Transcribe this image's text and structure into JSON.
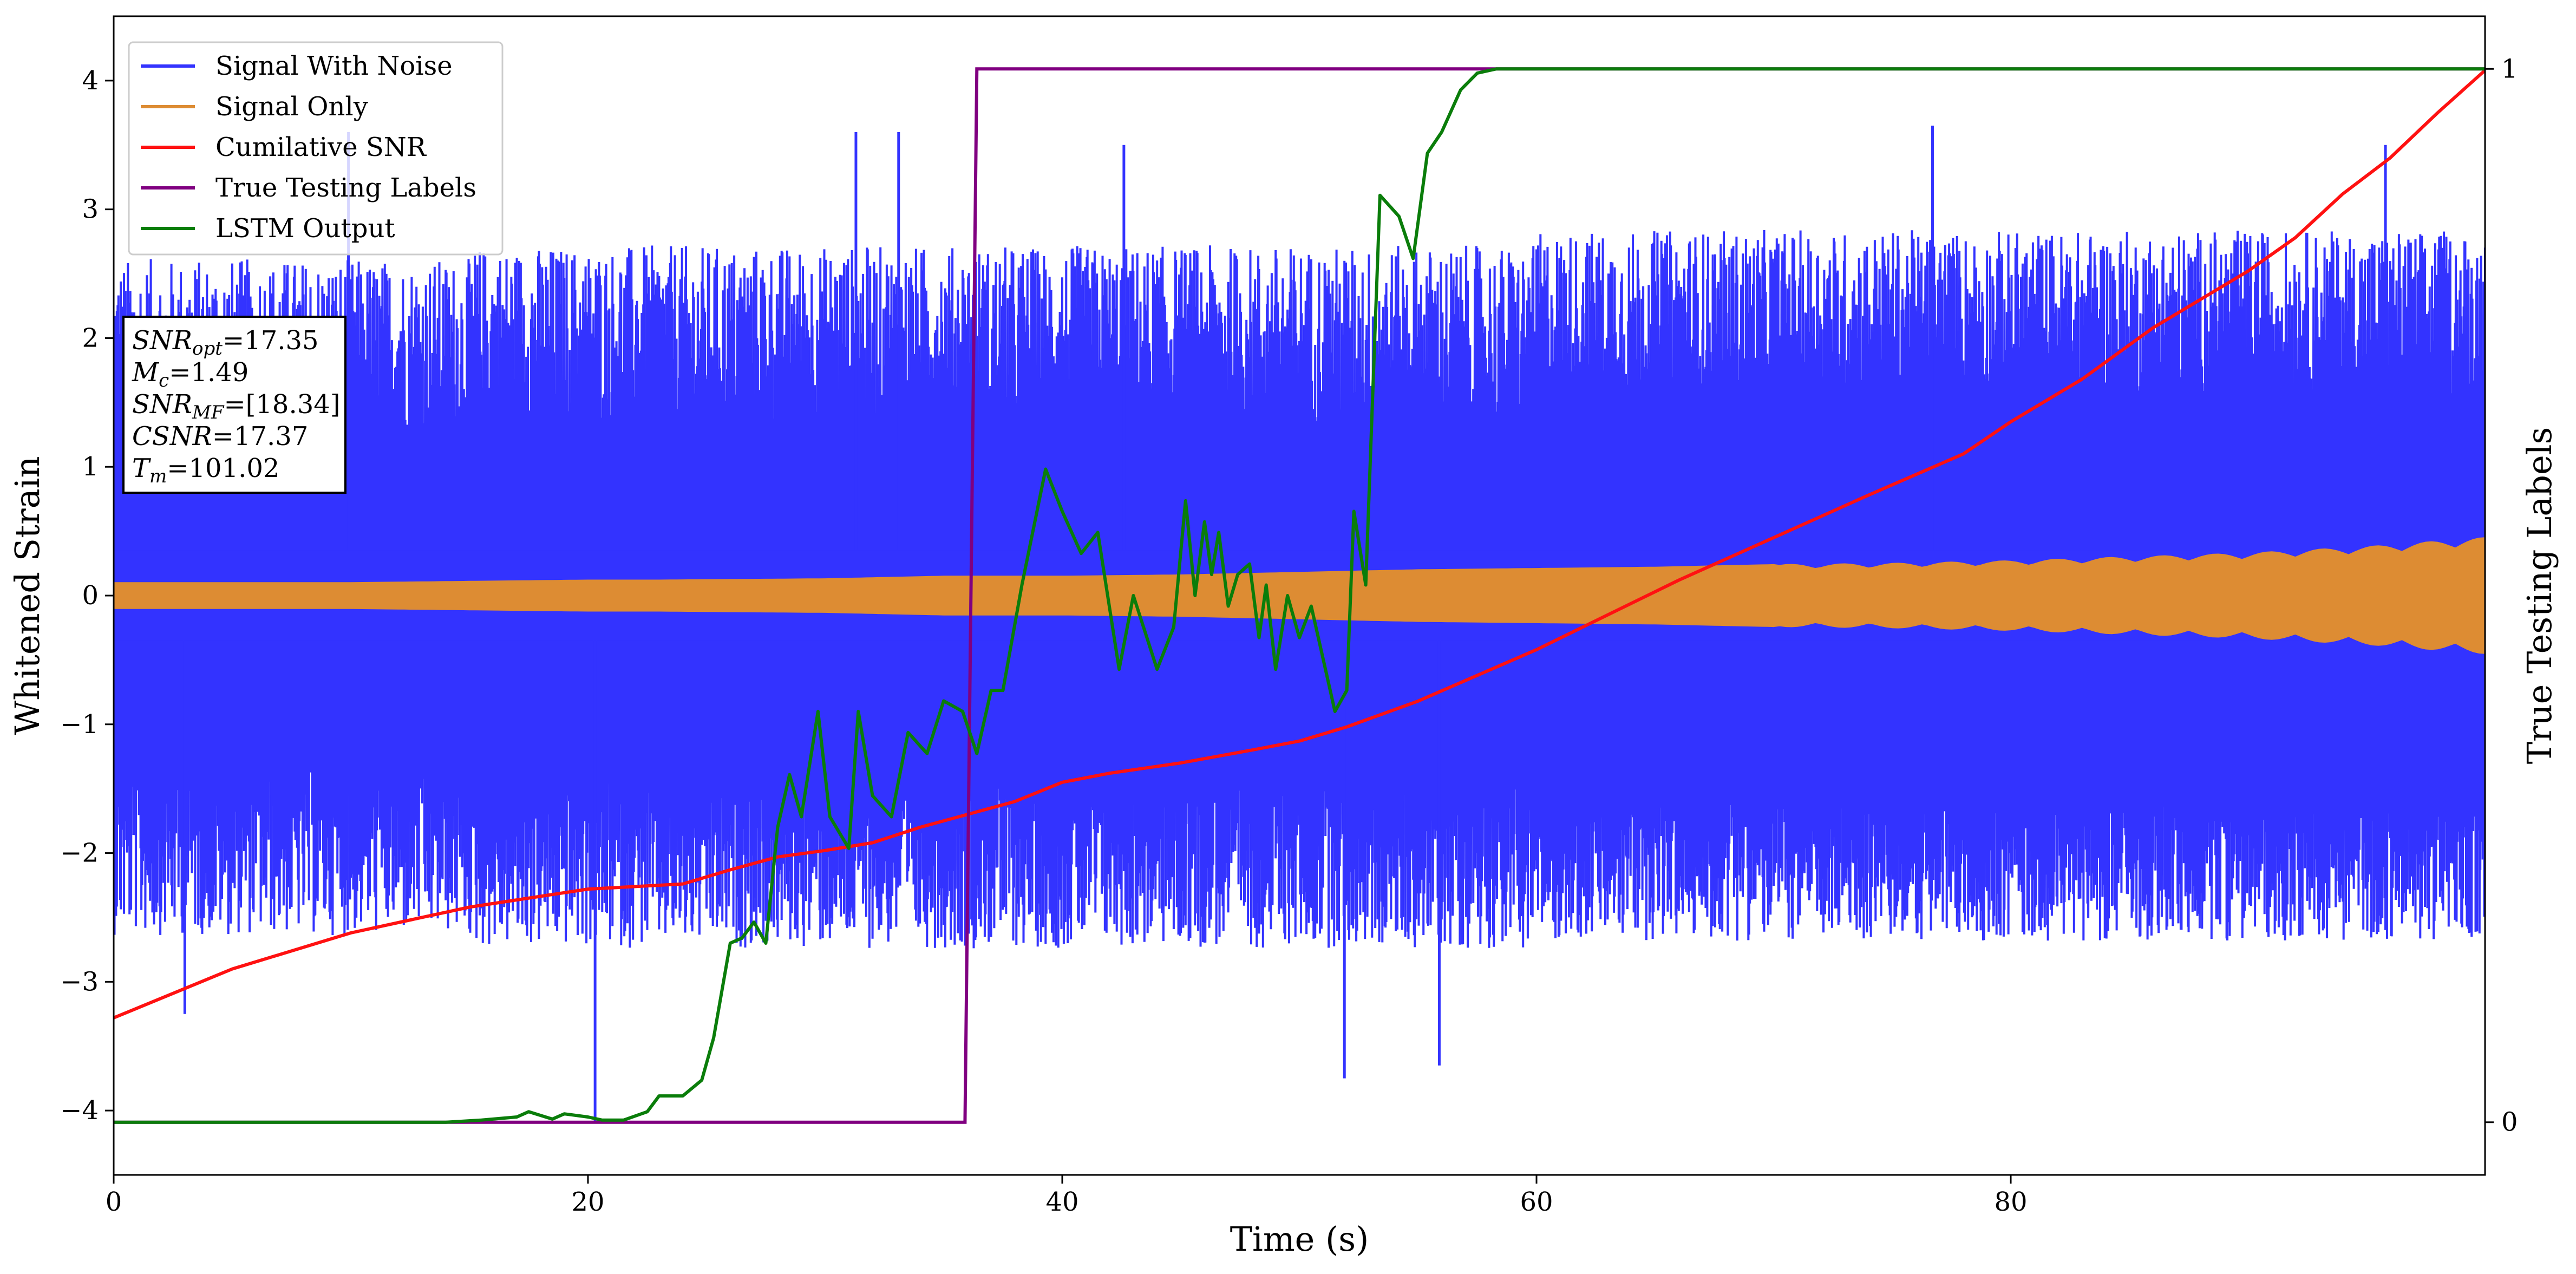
{
  "chart_data": {
    "type": "line",
    "title": "",
    "xlabel": "Time (s)",
    "ylabel": "Whitened Strain",
    "y2label": "True Testing Labels",
    "xlim": [
      0,
      100
    ],
    "ylim": [
      -4.5,
      4.5
    ],
    "y2lim": [
      -0.05,
      1.05
    ],
    "x_ticks": [
      0,
      20,
      40,
      60,
      80
    ],
    "y_ticks": [
      -4,
      -3,
      -2,
      -1,
      0,
      1,
      2,
      3,
      4
    ],
    "y2_ticks": [
      0,
      1
    ],
    "grid": false,
    "legend_position": "top-left",
    "colors": {
      "noise": "#3333ff",
      "signal": "#dd8c33",
      "csnr": "#ff1111",
      "labels": "#800080",
      "lstm": "#0a7d0a"
    },
    "series": [
      {
        "name": "Signal With Noise",
        "axis": "left",
        "color": "#3333ff",
        "description_values": {
          "segments": [
            {
              "x": [
                0,
                15
              ],
              "upper_mean": 1.5,
              "lower_mean": -1.6,
              "typical_peak": 2.9,
              "typical_trough": -2.9
            },
            {
              "x": [
                15,
                60
              ],
              "upper_mean": 1.6,
              "lower_mean": -1.7,
              "typical_peak": 3.0,
              "typical_trough": -3.0
            },
            {
              "x": [
                60,
                100
              ],
              "upper_mean": 1.8,
              "lower_mean": -1.8,
              "typical_peak": 3.1,
              "typical_trough": -2.9
            }
          ],
          "spikes": [
            {
              "x": 3.0,
              "y": -3.25
            },
            {
              "x": 9.9,
              "y": 3.6
            },
            {
              "x": 20.3,
              "y": -4.1
            },
            {
              "x": 31.3,
              "y": 3.6
            },
            {
              "x": 33.1,
              "y": 3.6
            },
            {
              "x": 42.6,
              "y": 3.5
            },
            {
              "x": 51.9,
              "y": -3.75
            },
            {
              "x": 55.9,
              "y": -3.65
            },
            {
              "x": 76.7,
              "y": 3.65
            },
            {
              "x": 95.8,
              "y": 3.5
            }
          ]
        }
      },
      {
        "name": "Signal Only",
        "axis": "left",
        "color": "#dd8c33",
        "x": [
          0,
          10,
          15,
          20,
          23,
          30,
          35,
          40,
          45,
          50,
          55,
          60,
          65,
          70,
          75,
          80,
          85,
          90,
          95,
          100
        ],
        "amplitude": [
          0.1,
          0.1,
          0.11,
          0.12,
          0.12,
          0.13,
          0.15,
          0.15,
          0.16,
          0.18,
          0.2,
          0.21,
          0.22,
          0.24,
          0.25,
          0.27,
          0.3,
          0.33,
          0.38,
          0.45
        ]
      },
      {
        "name": "Cumilative SNR",
        "axis": "left",
        "color": "#ff1111",
        "x": [
          0,
          5,
          10,
          15,
          20,
          24,
          26,
          28,
          30,
          32,
          34,
          36,
          38,
          40,
          42,
          45,
          48,
          50,
          52,
          55,
          58,
          60,
          63,
          66,
          70,
          74,
          78,
          80,
          83,
          86,
          88,
          90,
          92,
          94,
          96,
          98,
          100
        ],
        "y": [
          -3.28,
          -2.9,
          -2.62,
          -2.42,
          -2.28,
          -2.24,
          -2.13,
          -2.03,
          -1.98,
          -1.92,
          -1.8,
          -1.7,
          -1.6,
          -1.45,
          -1.38,
          -1.3,
          -1.2,
          -1.13,
          -1.02,
          -0.82,
          -0.58,
          -0.42,
          -0.15,
          0.12,
          0.45,
          0.78,
          1.1,
          1.35,
          1.68,
          2.08,
          2.3,
          2.52,
          2.78,
          3.12,
          3.4,
          3.75,
          4.08
        ]
      },
      {
        "name": "True Testing Labels",
        "axis": "right",
        "color": "#800080",
        "x": [
          0,
          35.9,
          36.4,
          100
        ],
        "y": [
          0,
          0,
          1,
          1
        ]
      },
      {
        "name": "LSTM Output",
        "axis": "right",
        "color": "#0a7d0a",
        "x": [
          0,
          14,
          15.5,
          17,
          17.5,
          18.5,
          19,
          20,
          20.6,
          21.5,
          22.5,
          23,
          24,
          24.8,
          25.3,
          26,
          26.5,
          27,
          27.5,
          28,
          28.5,
          29,
          29.7,
          30.2,
          31,
          31.4,
          32,
          32.8,
          33.5,
          34.3,
          35,
          35.8,
          36.4,
          37,
          37.5,
          38.3,
          39.3,
          40,
          40.8,
          41.5,
          42.4,
          43,
          44,
          44.7,
          45.2,
          45.6,
          46,
          46.3,
          46.6,
          47,
          47.4,
          47.9,
          48.3,
          48.6,
          49,
          49.5,
          50,
          50.5,
          51,
          51.5,
          52,
          52.3,
          52.8,
          53.4,
          54.2,
          54.8,
          55.4,
          56,
          56.8,
          57.5,
          58.3,
          59.2,
          60,
          61,
          62.5,
          100
        ],
        "y": [
          0,
          0,
          0.002,
          0.005,
          0.01,
          0.003,
          0.008,
          0.005,
          0.002,
          0.002,
          0.01,
          0.025,
          0.025,
          0.04,
          0.08,
          0.17,
          0.175,
          0.19,
          0.17,
          0.28,
          0.33,
          0.29,
          0.39,
          0.29,
          0.26,
          0.39,
          0.31,
          0.29,
          0.37,
          0.35,
          0.4,
          0.39,
          0.35,
          0.41,
          0.41,
          0.51,
          0.62,
          0.58,
          0.54,
          0.56,
          0.43,
          0.5,
          0.43,
          0.47,
          0.59,
          0.5,
          0.57,
          0.52,
          0.56,
          0.49,
          0.52,
          0.53,
          0.46,
          0.51,
          0.43,
          0.5,
          0.46,
          0.49,
          0.44,
          0.39,
          0.41,
          0.58,
          0.51,
          0.88,
          0.86,
          0.82,
          0.92,
          0.94,
          0.98,
          0.996,
          1.0,
          1.0,
          1.0,
          1.0,
          1.0,
          1.0
        ]
      }
    ],
    "annotation_box": {
      "lines": [
        {
          "symbol": "SNR",
          "sub": "opt",
          "value": "=17.35"
        },
        {
          "symbol": "M",
          "sub": "c",
          "value": "=1.49"
        },
        {
          "symbol": "SNR",
          "sub": "MF",
          "value": "=[18.34]"
        },
        {
          "symbol": "CSNR",
          "sub": "",
          "value": "=17.37"
        },
        {
          "symbol": "T",
          "sub": "m",
          "value": "=101.02"
        }
      ]
    }
  }
}
